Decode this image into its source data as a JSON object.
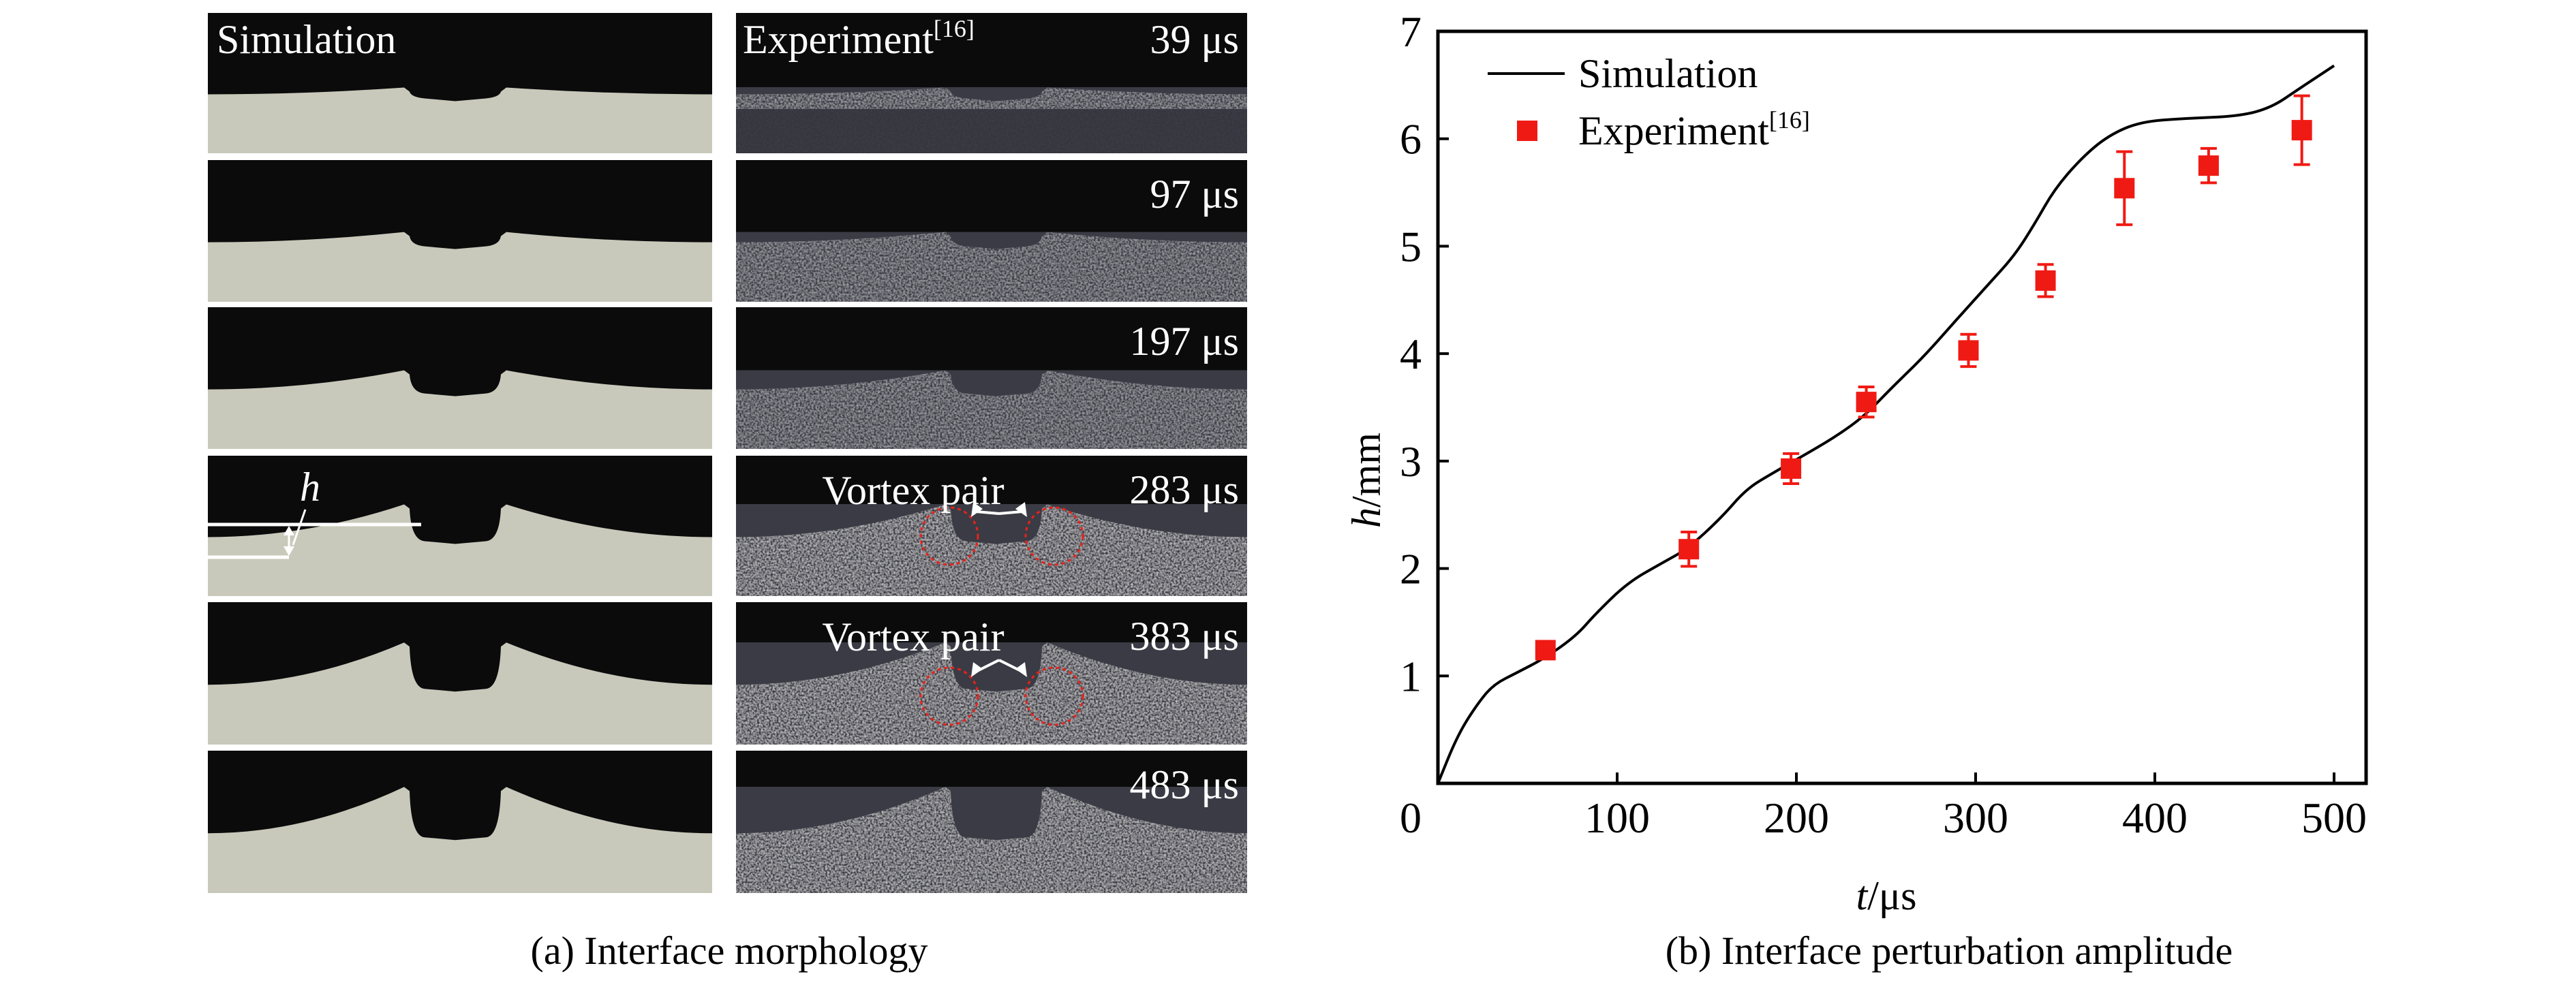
{
  "panel_a": {
    "simulation_title": "Simulation",
    "experiment_title": "Experiment",
    "experiment_ref": "[16]",
    "times": [
      "39 μs",
      "97 μs",
      "197 μs",
      "283 μs",
      "383 μs",
      "483 μs"
    ],
    "vortex_label": "Vortex pair",
    "h_label": "h",
    "caption": "(a) Interface morphology",
    "colors": {
      "simulation_fluid": "#c9c9bb",
      "background": "#0b0b0c",
      "circle": "#e8221a"
    }
  },
  "panel_b": {
    "caption": "(b) Interface perturbation amplitude"
  },
  "chart_data": {
    "type": "line",
    "title": "",
    "xlabel_italic": "t",
    "xlabel_unit": "/μs",
    "ylabel_italic": "h",
    "ylabel_unit": "/mm",
    "xlim": [
      0,
      525
    ],
    "ylim": [
      0,
      7
    ],
    "xticks": [
      0,
      100,
      200,
      300,
      400,
      500
    ],
    "yticks": [
      1,
      2,
      3,
      4,
      5,
      6,
      7
    ],
    "grid": false,
    "legend_position": "top-left",
    "series": [
      {
        "name": "Simulation",
        "kind": "line",
        "color": "#000000",
        "x": [
          0,
          11,
          22,
          31,
          44,
          59,
          77,
          88,
          106,
          125,
          139,
          158,
          172,
          187,
          209,
          223,
          238,
          253,
          271,
          289,
          308,
          322,
          333,
          344,
          359,
          374,
          392,
          418,
          447,
          465,
          480,
          500
        ],
        "y": [
          0,
          0.45,
          0.74,
          0.92,
          1.03,
          1.16,
          1.37,
          1.58,
          1.87,
          2.05,
          2.18,
          2.47,
          2.74,
          2.89,
          3.1,
          3.24,
          3.42,
          3.68,
          3.97,
          4.31,
          4.66,
          4.92,
          5.21,
          5.53,
          5.82,
          6.03,
          6.16,
          6.19,
          6.21,
          6.29,
          6.46,
          6.68
        ]
      },
      {
        "name": "Experiment",
        "name_ref": "[16]",
        "kind": "scatter",
        "color": "#f01a14",
        "x": [
          60,
          140,
          197,
          239,
          296,
          339,
          383,
          430,
          482
        ],
        "y": [
          1.24,
          2.18,
          2.93,
          3.55,
          4.03,
          4.68,
          5.54,
          5.75,
          6.08
        ],
        "yerr": [
          0.05,
          0.16,
          0.14,
          0.14,
          0.15,
          0.15,
          0.34,
          0.16,
          0.32
        ]
      }
    ]
  }
}
